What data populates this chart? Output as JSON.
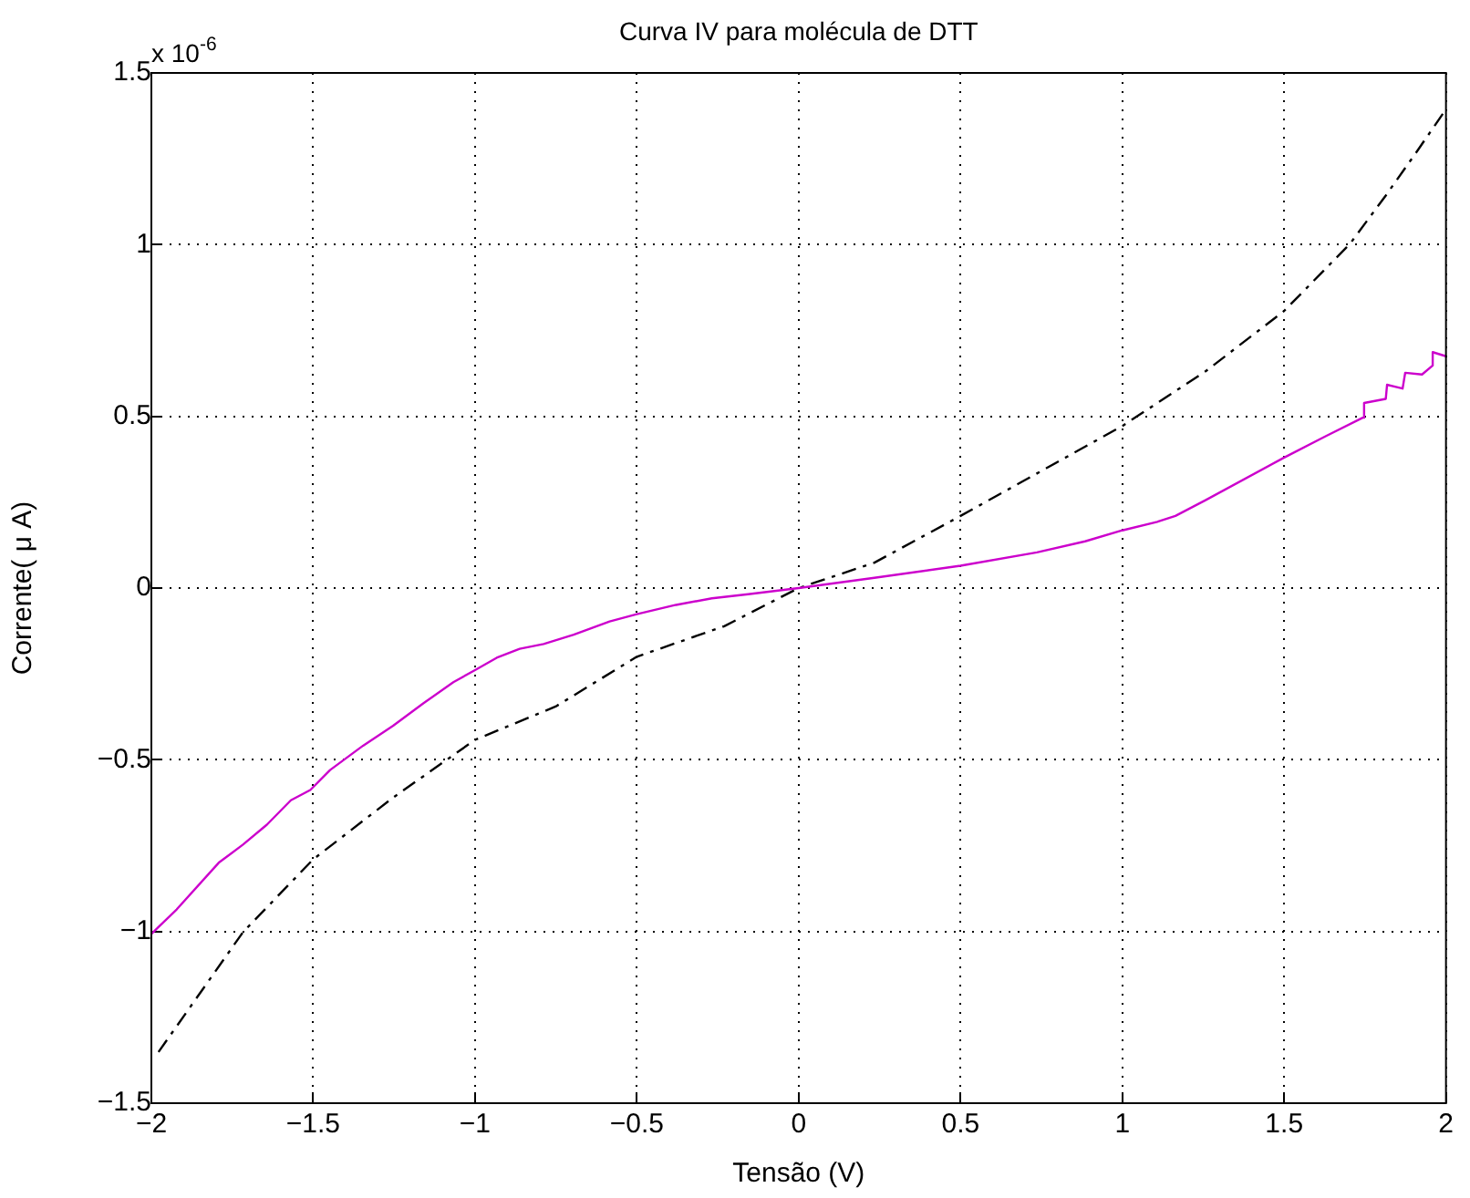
{
  "chart_data": {
    "type": "line",
    "title": "Curva IV para molécula de DTT",
    "xlabel": "Tensão (V)",
    "ylabel": "Corrente( μ A)",
    "annotations": [
      "x 10$^{-6}$"
    ],
    "xlim": [
      -2,
      2
    ],
    "xticks": [
      -2,
      -1.5,
      -1,
      -0.5,
      0,
      0.5,
      1,
      1.5,
      2
    ],
    "ylim": [
      -1.5,
      1.5
    ],
    "yticks": [
      -1.5,
      -1,
      -0.5,
      0,
      0.5,
      1,
      1.5
    ],
    "grid": true,
    "marker": "none",
    "series": [
      {
        "color": "#cc00cc",
        "line_style": "solid",
        "x": [
          -2,
          -1.922,
          -1.792,
          -1.717,
          -1.643,
          -1.569,
          -1.509,
          -1.448,
          -1.346,
          -1.253,
          -1.16,
          -1.067,
          -1,
          -0.933,
          -0.862,
          -0.788,
          -0.695,
          -0.584,
          -0.5,
          -0.379,
          -0.268,
          -0.156,
          0,
          0.234,
          0.5,
          0.736,
          0.885,
          1,
          1.108,
          1.164,
          1.257,
          1.5,
          1.628,
          1.743,
          1.747,
          1.814,
          1.818,
          1.866,
          1.874,
          1.926,
          1.959,
          1.959,
          2
        ],
        "values": [
          -1.007,
          -0.936,
          -0.8,
          -0.747,
          -0.689,
          -0.618,
          -0.588,
          -0.53,
          -0.459,
          -0.401,
          -0.336,
          -0.274,
          -0.239,
          -0.203,
          -0.177,
          -0.163,
          -0.136,
          -0.097,
          -0.076,
          -0.049,
          -0.03,
          -0.018,
          0,
          0.03,
          0.065,
          0.104,
          0.136,
          0.168,
          0.193,
          0.21,
          0.256,
          0.38,
          0.442,
          0.496,
          0.539,
          0.551,
          0.592,
          0.581,
          0.627,
          0.622,
          0.648,
          0.687,
          0.675
        ]
      },
      {
        "color": "#000000",
        "line_style": "dashed",
        "x": [
          -1.978,
          -1.717,
          -1.5,
          -1.253,
          -1,
          -0.751,
          -0.5,
          -0.23,
          0,
          0.234,
          0.5,
          1,
          1.257,
          1.5,
          1.703,
          1.814,
          1.907,
          1.991
        ],
        "values": [
          -1.351,
          -1.002,
          -0.79,
          -0.61,
          -0.442,
          -0.345,
          -0.2,
          -0.111,
          0,
          0.074,
          0.21,
          0.472,
          0.631,
          0.807,
          1.002,
          1.143,
          1.267,
          1.382
        ]
      }
    ]
  }
}
